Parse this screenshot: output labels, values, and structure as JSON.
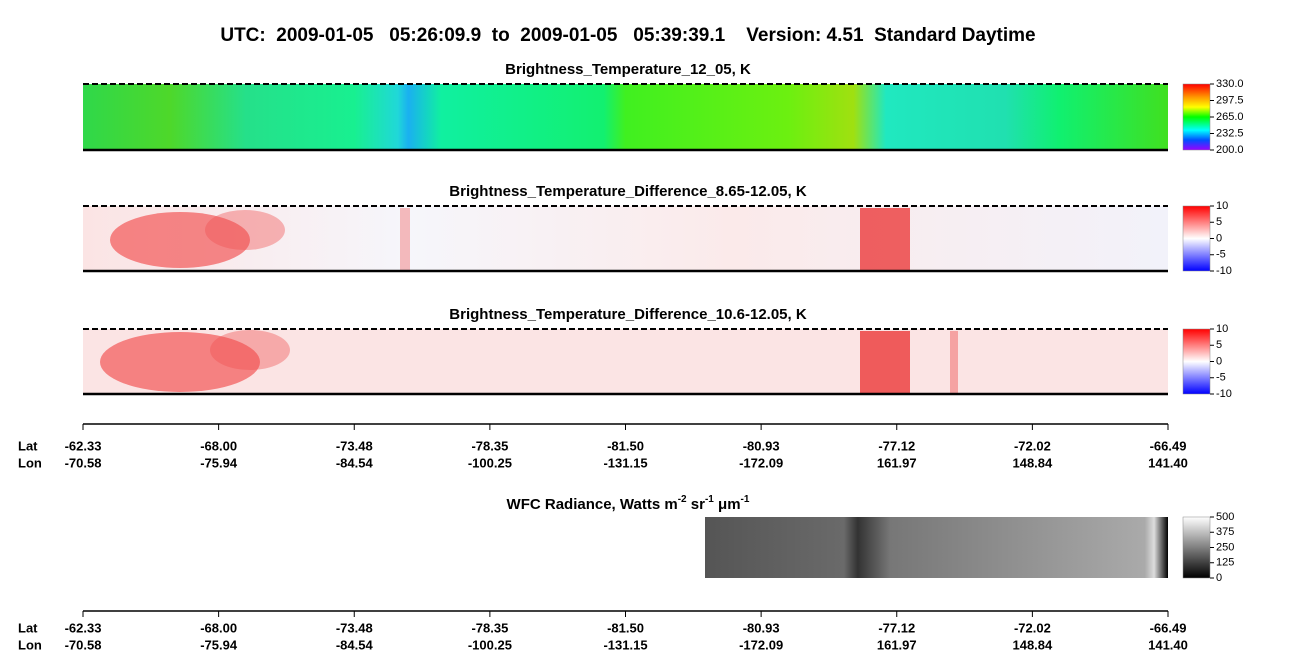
{
  "header": {
    "title": "UTC:  2009-01-05   05:26:09.9  to  2009-01-05   05:39:39.1    Version: 4.51  Standard Daytime"
  },
  "panels": [
    {
      "title": "Brightness_Temperature_12_05, K",
      "colorbar": [
        "330.0",
        "297.5",
        "265.0",
        "232.5",
        "200.0"
      ]
    },
    {
      "title": "Brightness_Temperature_Difference_8.65-12.05, K",
      "colorbar": [
        "10",
        "5",
        "0",
        "-5",
        "-10"
      ]
    },
    {
      "title": "Brightness_Temperature_Difference_10.6-12.05, K",
      "colorbar": [
        "10",
        "5",
        "0",
        "-5",
        "-10"
      ]
    }
  ],
  "wfc": {
    "title": [
      "WFC Radiance, Watts m",
      "-2",
      " sr",
      "-1",
      " μm",
      "-1"
    ],
    "colorbar": [
      "500",
      "375",
      "250",
      "125",
      "0"
    ]
  },
  "axes": [
    {
      "lat_label": "Lat",
      "lon_label": "Lon",
      "lat": [
        "-62.33",
        "-68.00",
        "-73.48",
        "-78.35",
        "-81.50",
        "-80.93",
        "-77.12",
        "-72.02",
        "-66.49"
      ],
      "lon": [
        "-70.58",
        "-75.94",
        "-84.54",
        "-100.25",
        "-131.15",
        "-172.09",
        "161.97",
        "148.84",
        "141.40"
      ]
    },
    {
      "lat_label": "Lat",
      "lon_label": "Lon",
      "lat": [
        "-62.33",
        "-68.00",
        "-73.48",
        "-78.35",
        "-81.50",
        "-80.93",
        "-77.12",
        "-72.02",
        "-66.49"
      ],
      "lon": [
        "-70.58",
        "-75.94",
        "-84.54",
        "-100.25",
        "-131.15",
        "-172.09",
        "161.97",
        "148.84",
        "141.40"
      ]
    }
  ]
}
